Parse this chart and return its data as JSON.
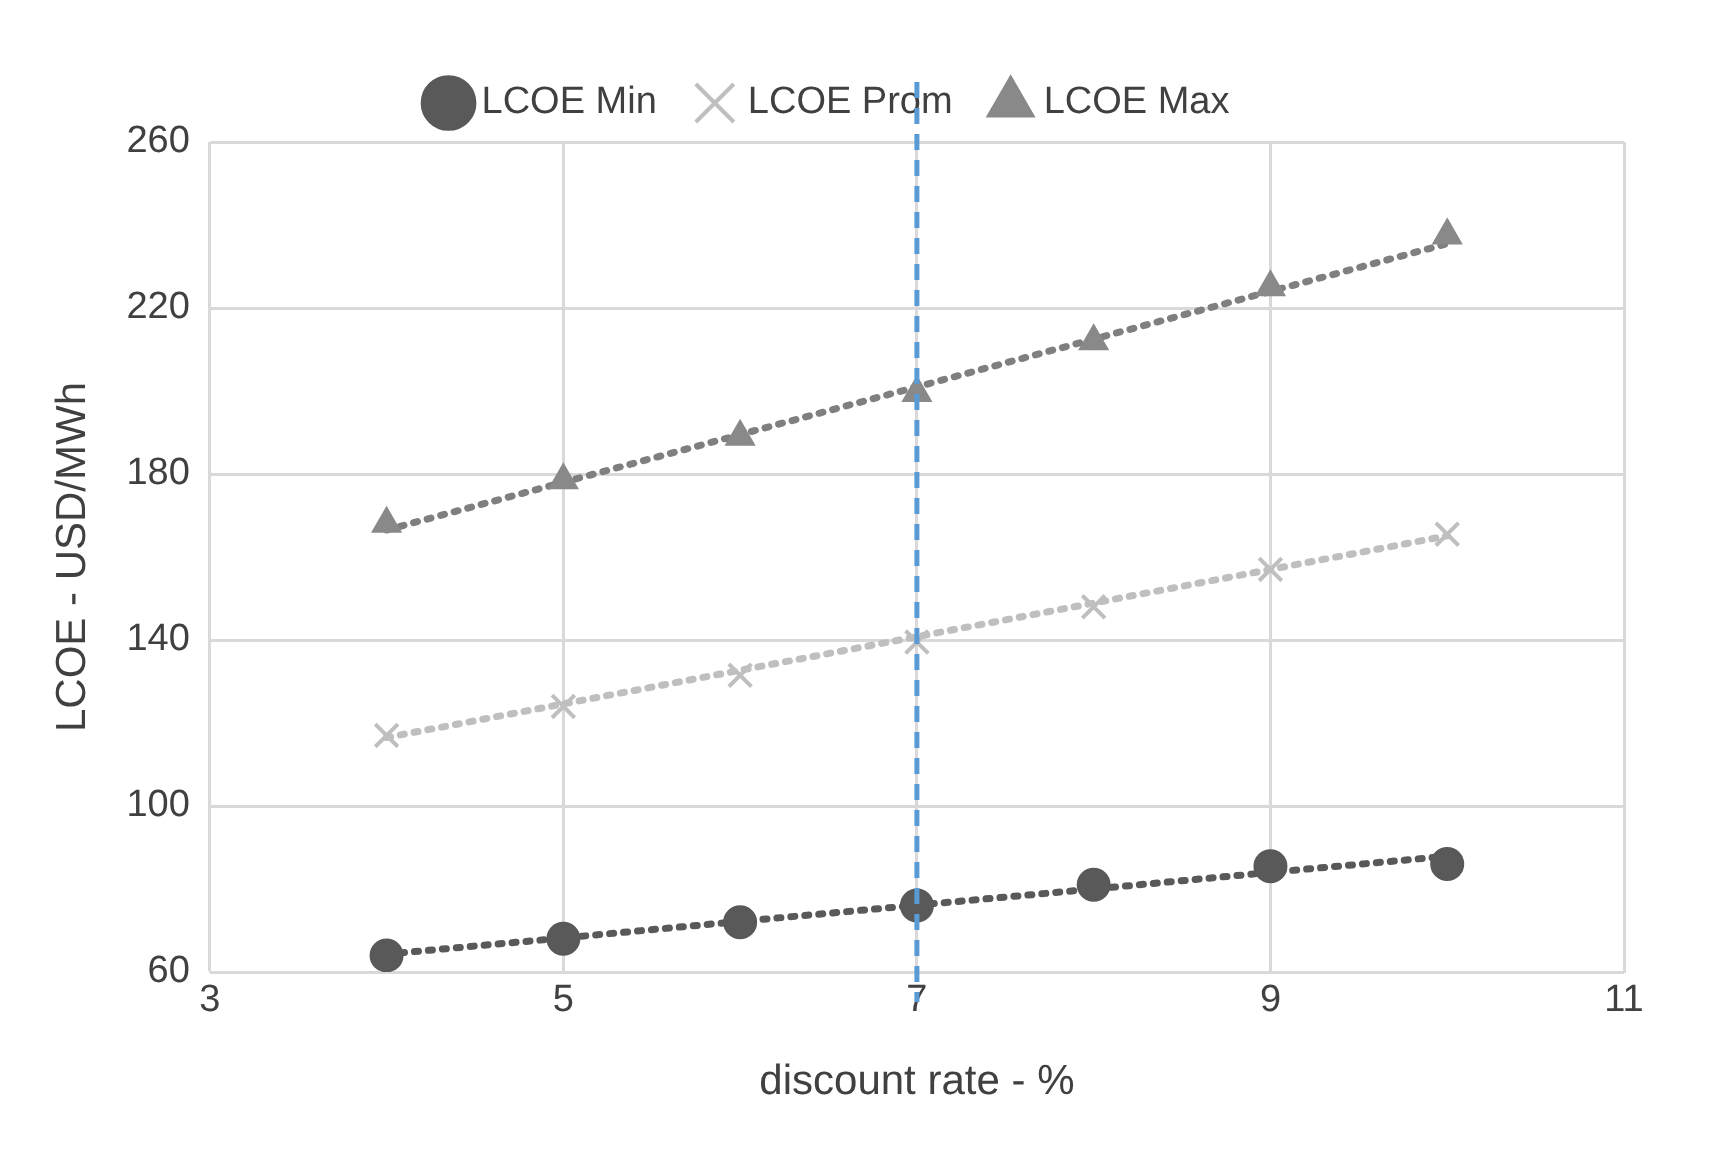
{
  "chart_data": {
    "type": "scatter",
    "xlabel": "discount rate - %",
    "ylabel": "LCOE - USD/MWh",
    "xlim": [
      3,
      11
    ],
    "xticks": [
      3,
      5,
      7,
      9,
      11
    ],
    "ylim": [
      60,
      260
    ],
    "yticks": [
      60,
      100,
      140,
      180,
      220,
      260
    ],
    "grid": true,
    "legend": "top",
    "x": [
      4,
      5,
      6,
      7,
      8,
      9,
      10
    ],
    "series": [
      {
        "name": "LCOE Min",
        "color": "#595959",
        "marker": "circle",
        "values": [
          64,
          68,
          72,
          76,
          81,
          85.5,
          86
        ]
      },
      {
        "name": "LCOE Prom",
        "color": "#bfbfbf",
        "marker": "cross",
        "values": [
          117,
          124,
          131.5,
          139.5,
          148,
          157,
          165.5
        ]
      },
      {
        "name": "LCOE Max",
        "color": "#898989",
        "marker": "triangle",
        "values": [
          168,
          178.5,
          189,
          199.5,
          212,
          225,
          237.5
        ]
      },
      {
        "type": "line",
        "color": "#595959",
        "line_style": "dotted",
        "marker": "none",
        "values": [
          64.3,
          68.2,
          72.2,
          76.1,
          80,
          84,
          87.9
        ]
      },
      {
        "type": "line",
        "color": "#bfbfbf",
        "line_style": "dotted",
        "marker": "none",
        "values": [
          116.5,
          124.6,
          132.7,
          140.8,
          148.9,
          157,
          165.1
        ]
      },
      {
        "type": "line",
        "color": "#7f7f7f",
        "line_style": "dotted",
        "marker": "none",
        "values": [
          166.5,
          178,
          189.5,
          201,
          212.5,
          224,
          235.5
        ]
      }
    ],
    "ref_lines": [
      {
        "axis": "x",
        "value": 7,
        "label": null,
        "color": "#5b9bd5",
        "line_style": "dashed"
      }
    ]
  }
}
